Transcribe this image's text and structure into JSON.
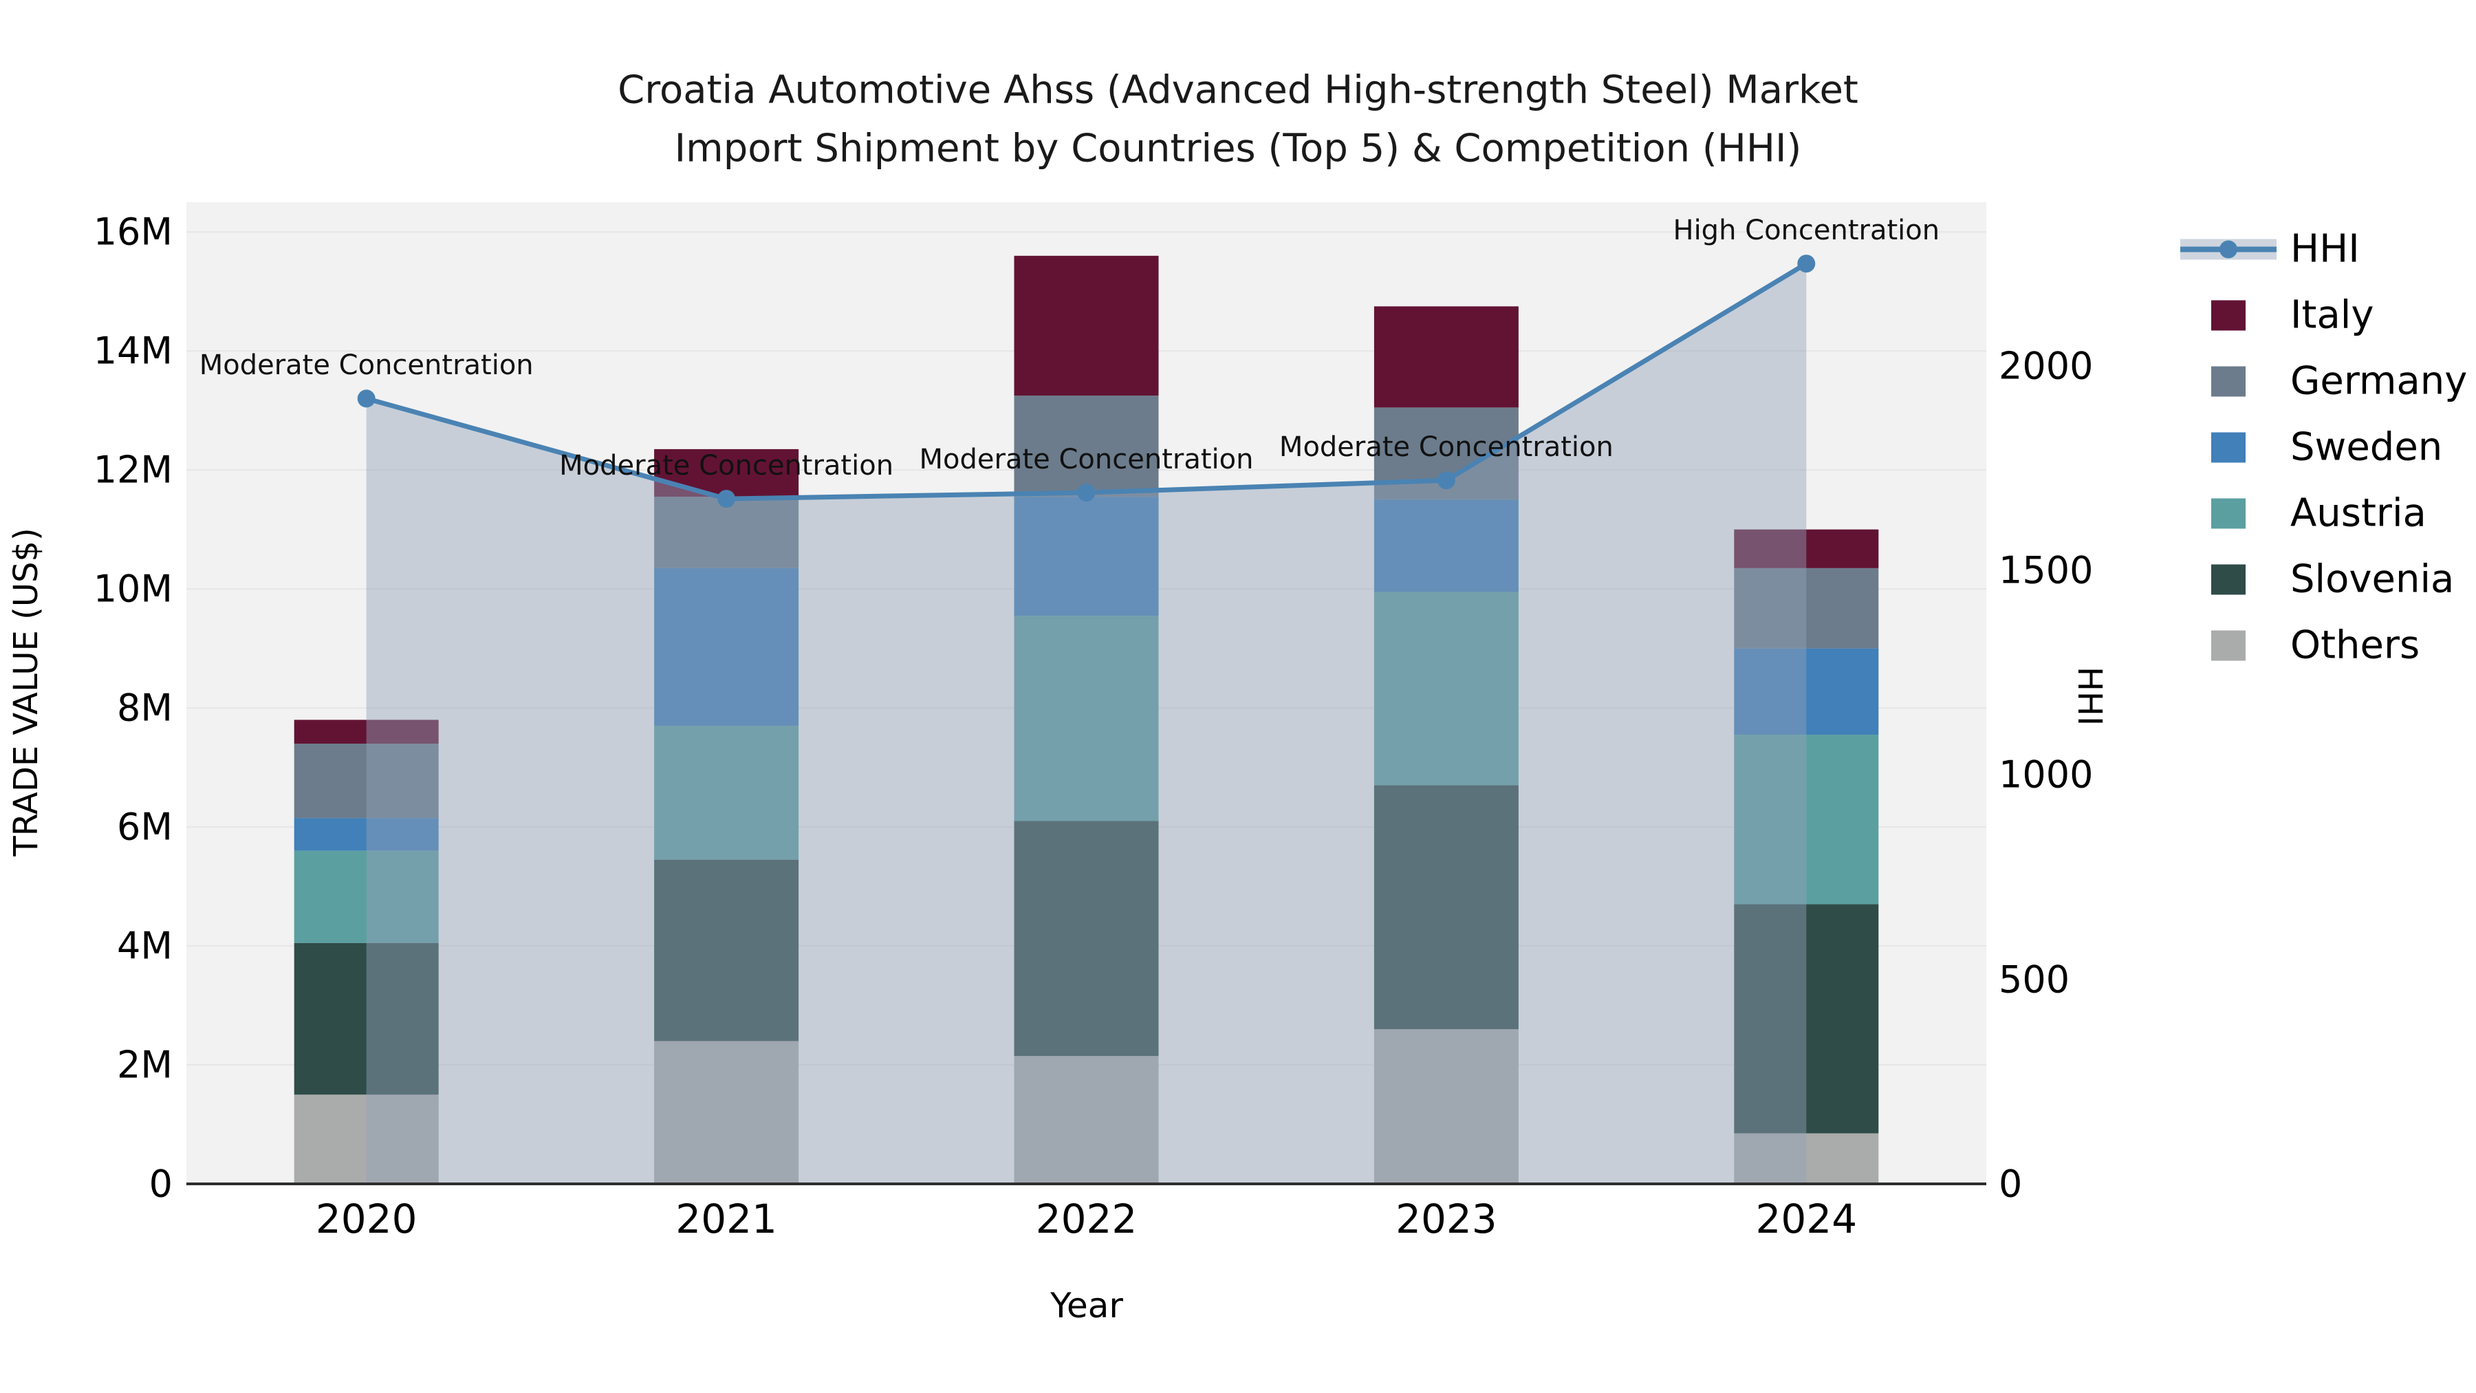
{
  "title": {
    "line1": "Croatia Automotive Ahss (Advanced High-strength Steel) Market",
    "line2": "Import Shipment by Countries (Top 5) & Competition (HHI)"
  },
  "axes": {
    "x_label": "Year",
    "y_left_label": "TRADE VALUE (US$)",
    "y_right_label": "HHI"
  },
  "legend": {
    "items": [
      {
        "label": "HHI",
        "type": "line",
        "color": "#4A83B3"
      },
      {
        "label": "Italy",
        "type": "swatch",
        "color": "#621334"
      },
      {
        "label": "Germany",
        "type": "swatch",
        "color": "#6C7C8C"
      },
      {
        "label": "Sweden",
        "type": "swatch",
        "color": "#4180B8"
      },
      {
        "label": "Austria",
        "type": "swatch",
        "color": "#5B9FA0"
      },
      {
        "label": "Slovenia",
        "type": "swatch",
        "color": "#2F4C49"
      },
      {
        "label": "Others",
        "type": "swatch",
        "color": "#A9ACAB"
      }
    ]
  },
  "chart_data": {
    "type": "combo-stacked-bar-line",
    "categories": [
      "2020",
      "2021",
      "2022",
      "2023",
      "2024"
    ],
    "bar_unit": "million US$",
    "series": [
      {
        "name": "Others",
        "color": "#A9ACAB",
        "values": [
          1.5,
          2.4,
          2.15,
          2.6,
          0.85
        ]
      },
      {
        "name": "Slovenia",
        "color": "#2F4C49",
        "values": [
          2.55,
          3.05,
          3.95,
          4.1,
          3.85
        ]
      },
      {
        "name": "Austria",
        "color": "#5B9FA0",
        "values": [
          1.55,
          2.25,
          3.45,
          3.25,
          2.85
        ]
      },
      {
        "name": "Sweden",
        "color": "#4180B8",
        "values": [
          0.55,
          2.65,
          2.0,
          1.55,
          1.45
        ]
      },
      {
        "name": "Germany",
        "color": "#6C7C8C",
        "values": [
          1.25,
          1.2,
          1.7,
          1.55,
          1.35
        ]
      },
      {
        "name": "Italy",
        "color": "#621334",
        "values": [
          0.4,
          0.8,
          2.35,
          1.7,
          0.65
        ]
      }
    ],
    "bar_totals": [
      7.8,
      12.35,
      15.6,
      14.75,
      11.0
    ],
    "line": {
      "name": "HHI",
      "color": "#4A83B3",
      "area_fill": "rgba(147,162,184,0.45)",
      "values": [
        1920,
        1675,
        1690,
        1720,
        2250
      ]
    },
    "annotations": [
      {
        "category": "2020",
        "text": "Moderate Concentration"
      },
      {
        "category": "2021",
        "text": "Moderate Concentration"
      },
      {
        "category": "2022",
        "text": "Moderate Concentration"
      },
      {
        "category": "2023",
        "text": "Moderate Concentration"
      },
      {
        "category": "2024",
        "text": "High Concentration"
      }
    ],
    "y_left": {
      "ylim": [
        0,
        16.5
      ],
      "tick_values": [
        0,
        2,
        4,
        6,
        8,
        10,
        12,
        14,
        16
      ],
      "tick_labels": [
        "0",
        "2M",
        "4M",
        "6M",
        "8M",
        "10M",
        "12M",
        "14M",
        "16M"
      ]
    },
    "y_right": {
      "ylim": [
        0,
        2400
      ],
      "tick_values": [
        0,
        500,
        1000,
        1500,
        2000
      ],
      "tick_labels": [
        "0",
        "500",
        "1000",
        "1500",
        "2000"
      ]
    },
    "grid": "horizontal",
    "legend_position": "right-top",
    "plot_background": "#f2f2f2"
  }
}
